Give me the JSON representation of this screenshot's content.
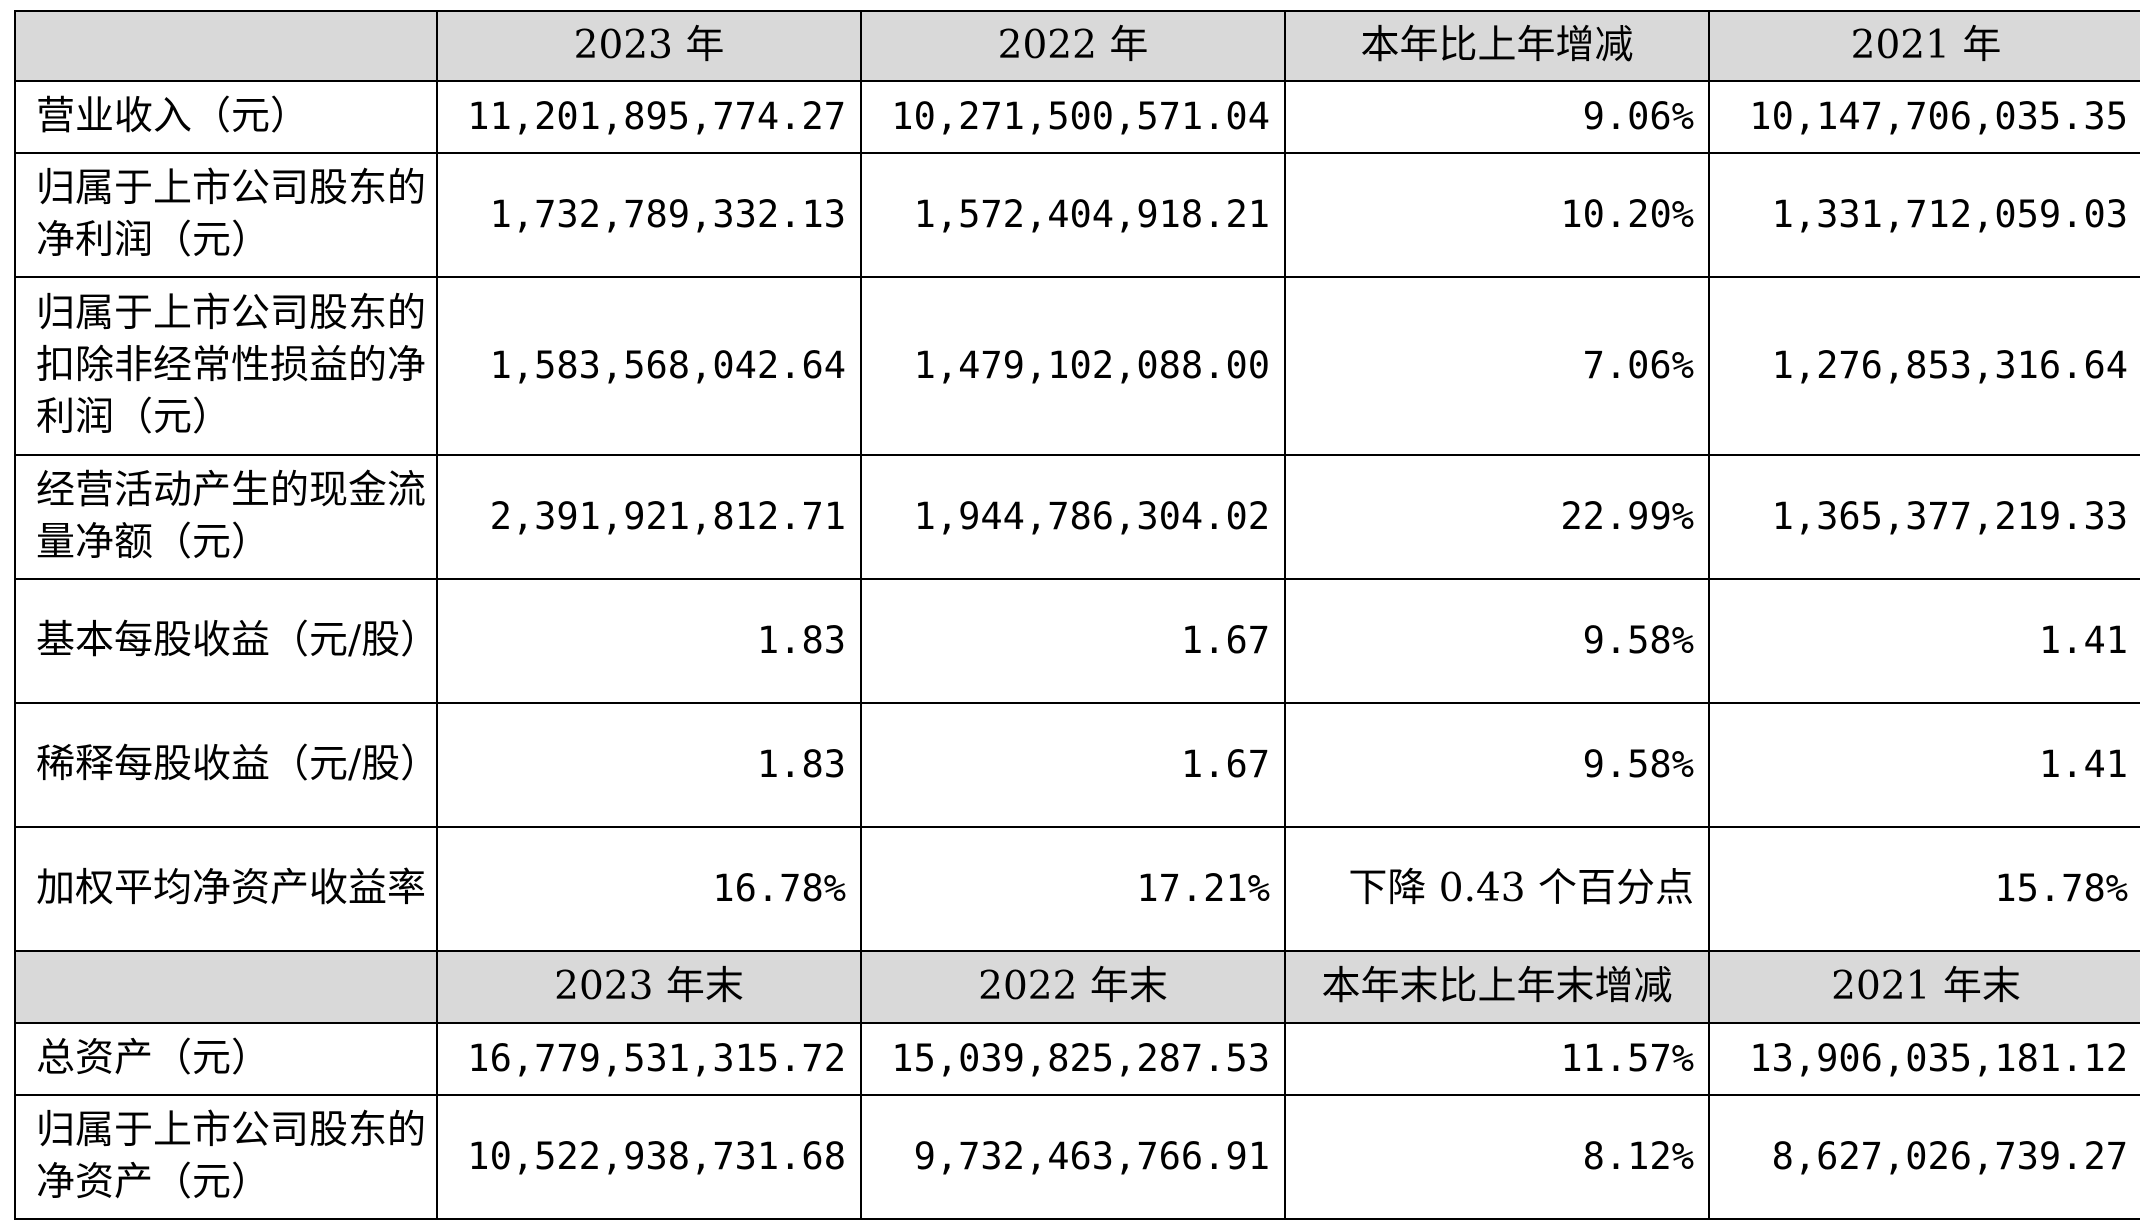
{
  "header1": [
    "",
    "2023 年",
    "2022 年",
    "本年比上年增减",
    "2021 年"
  ],
  "rows1": [
    {
      "label": "营业收入（元）",
      "values": [
        "11,201,895,774.27",
        "10,271,500,571.04",
        "9.06%",
        "10,147,706,035.35"
      ]
    },
    {
      "label": "归属于上市公司股东的净利润（元）",
      "values": [
        "1,732,789,332.13",
        "1,572,404,918.21",
        "10.20%",
        "1,331,712,059.03"
      ]
    },
    {
      "label": "归属于上市公司股东的扣除非经常性损益的净利润（元）",
      "values": [
        "1,583,568,042.64",
        "1,479,102,088.00",
        "7.06%",
        "1,276,853,316.64"
      ]
    },
    {
      "label": "经营活动产生的现金流量净额（元）",
      "values": [
        "2,391,921,812.71",
        "1,944,786,304.02",
        "22.99%",
        "1,365,377,219.33"
      ]
    },
    {
      "label": "基本每股收益（元/股）",
      "values": [
        "1.83",
        "1.67",
        "9.58%",
        "1.41"
      ]
    },
    {
      "label": "稀释每股收益（元/股）",
      "values": [
        "1.83",
        "1.67",
        "9.58%",
        "1.41"
      ]
    },
    {
      "label": "加权平均净资产收益率",
      "values": [
        "16.78%",
        "17.21%",
        "下降 0.43 个百分点",
        "15.78%"
      ]
    }
  ],
  "header2": [
    "",
    "2023 年末",
    "2022 年末",
    "本年末比上年末增减",
    "2021 年末"
  ],
  "rows2": [
    {
      "label": "总资产（元）",
      "values": [
        "16,779,531,315.72",
        "15,039,825,287.53",
        "11.57%",
        "13,906,035,181.12"
      ]
    },
    {
      "label": "归属于上市公司股东的净资产（元）",
      "values": [
        "10,522,938,731.68",
        "9,732,463,766.91",
        "8.12%",
        "8,627,026,739.27"
      ]
    }
  ]
}
